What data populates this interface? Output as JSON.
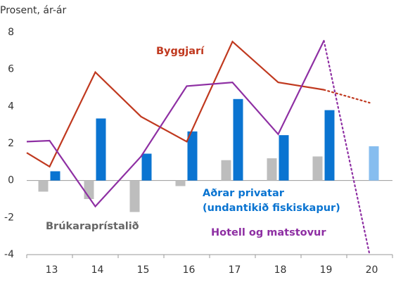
{
  "chart_data": {
    "type": "combo",
    "y_axis_title": "Prosent, ár-ár",
    "categories": [
      "13",
      "14",
      "15",
      "16",
      "17",
      "18",
      "19",
      "20"
    ],
    "ylim": [
      -4,
      8
    ],
    "yticks": [
      -4,
      -2,
      0,
      2,
      4,
      6,
      8
    ],
    "series": [
      {
        "name": "Brúkaraprístalið",
        "color": "#bdbdbd",
        "values": [
          -0.6,
          -1.0,
          -1.7,
          -0.3,
          1.1,
          1.2,
          1.3,
          null
        ]
      },
      {
        "name": [
          "Aðrar privatar",
          "(undantikið fiskiskapur)"
        ],
        "color": "#0a74d1",
        "forecast_color": "#86bdef",
        "forecast_from_index": 7,
        "values": [
          0.5,
          3.35,
          1.45,
          2.65,
          4.4,
          2.45,
          3.8,
          1.85
        ]
      }
    ],
    "lines": [
      {
        "name": "Byggjarí",
        "color": "#c0391f",
        "x": [
          12.5,
          13,
          14,
          15,
          16,
          17,
          18,
          19,
          20
        ],
        "values": [
          1.5,
          0.75,
          5.85,
          3.45,
          2.1,
          7.5,
          5.3,
          4.9,
          4.2
        ],
        "dotted_from_index": 7
      },
      {
        "name": "Hotell og matstovur",
        "color": "#8e2fa3",
        "x": [
          12.5,
          13,
          14,
          15,
          16,
          17,
          18,
          19,
          20
        ],
        "values": [
          2.1,
          2.15,
          -1.4,
          1.3,
          5.1,
          5.3,
          2.5,
          7.55,
          -4
        ],
        "dotted_from_index": 7
      }
    ]
  }
}
